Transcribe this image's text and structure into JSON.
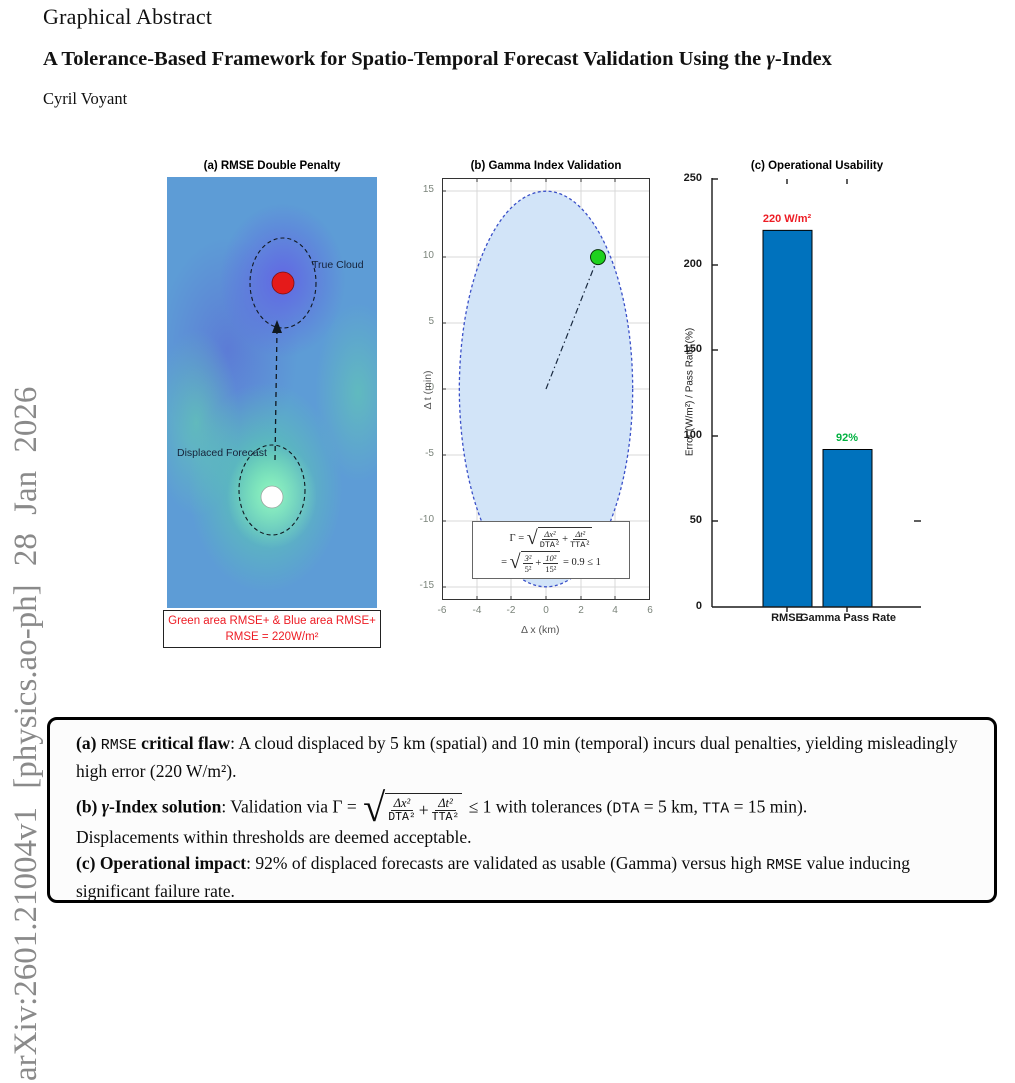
{
  "page": {
    "section_heading": "Graphical Abstract",
    "title_main": "A Tolerance-Based Framework for Spatio-Temporal Forecast Validation Using the ",
    "title_gamma": "γ",
    "title_suffix": "-Index",
    "author": "Cyril Voyant",
    "watermark": "arXiv:2601.21004v1  [physics.ao-ph]  28 Jan 2026"
  },
  "panel_a": {
    "title": "(a) RMSE Double Penalty",
    "label_true_cloud": "True Cloud",
    "label_displaced": "Displaced Forecast",
    "caption_line1": "Green area RMSE+ & Blue area RMSE+",
    "caption_line2": "RMSE = 220W/m²",
    "colors": {
      "true_dot": "#e51a1a",
      "displaced_dot": "#ffffff",
      "caption_text": "#ed1c24",
      "background": "#5d9cd6"
    }
  },
  "panel_b": {
    "title": "(b) Gamma Index Validation",
    "xlabel": "Δ x (km)",
    "ylabel": "Δ t (min)",
    "yticks": [
      "15",
      "10",
      "5",
      "0",
      "-5",
      "-10",
      "-15"
    ],
    "xticks": [
      "-6",
      "-4",
      "-2",
      "0",
      "2",
      "4",
      "6"
    ],
    "formula": {
      "lhs1": "Γ =",
      "f1n": "Δx²",
      "f1d": "DTA²",
      "plus1": "+",
      "f2n": "Δt²",
      "f2d": "TTA²",
      "lhs2": "=",
      "f3n": "3²",
      "f3d": "5²",
      "plus2": "+",
      "f4n": "10²",
      "f4d": "15²",
      "rhs2": "= 0.9 ≤ 1"
    },
    "colors": {
      "ellipse_fill": "#d2e4f8",
      "ellipse_stroke": "#3a50c8",
      "point": "#1ed11e"
    }
  },
  "panel_c": {
    "title": "(c) Operational Usability",
    "ylabel": "Error (W/m²) / Pass Rate (%)",
    "yticks": [
      "250",
      "200",
      "150",
      "100",
      "50",
      "0"
    ],
    "value_labels": [
      "220 W/m²",
      "92%"
    ],
    "categories": [
      "RMSE",
      "Gamma Pass Rate"
    ],
    "colors": {
      "bar": "#0072BD",
      "rmse_label": "#ed1c24",
      "gamma_label": "#00b140"
    }
  },
  "summary": {
    "a_label": "(a) ",
    "a_code": "RMSE",
    "a_bold": " critical flaw",
    "a_text": ": A cloud displaced by 5 km (spatial) and 10 min (temporal) incurs dual penalties, yielding misleadingly high error (220 W/m²).",
    "b_label": "(b) ",
    "b_gamma": "γ",
    "b_bold": "-Index solution",
    "b_text1": ": Validation via Γ =",
    "b_f1n": "Δx²",
    "b_f1d": "DTA²",
    "b_plus": "+",
    "b_f2n": "Δt²",
    "b_f2d": "TTA²",
    "b_text2": "≤ 1 with tolerances (",
    "b_code1": "DTA",
    "b_text3": " = 5 km, ",
    "b_code2": "TTA",
    "b_text4": " = 15 min).",
    "b_text5": "Displacements within thresholds are deemed acceptable.",
    "c_label": "(c) ",
    "c_bold": "Operational impact",
    "c_text1": ": 92% of displaced forecasts are validated as usable (Gamma) versus high ",
    "c_code": "RMSE",
    "c_text2": " value inducing significant failure rate."
  },
  "chart_data": [
    {
      "panel": "a",
      "type": "heatmap",
      "title": "(a) RMSE Double Penalty",
      "annotations": [
        {
          "label": "True Cloud",
          "marker": "red dot in dashed ellipse"
        },
        {
          "label": "Displaced Forecast",
          "marker": "white dot in dashed ellipse",
          "displacement": "5 km spatial, 10 min temporal"
        }
      ],
      "caption": "Green area RMSE+ & Blue area RMSE+  RMSE = 220W/m²"
    },
    {
      "panel": "b",
      "type": "scatter",
      "title": "(b) Gamma Index Validation",
      "xlabel": "Δ x (km)",
      "ylabel": "Δ t (min)",
      "xlim": [
        -6,
        6
      ],
      "ylim": [
        -16,
        16
      ],
      "xticks": [
        -6,
        -4,
        -2,
        0,
        2,
        4,
        6
      ],
      "yticks": [
        -15,
        -10,
        -5,
        0,
        5,
        10,
        15
      ],
      "grid": true,
      "tolerance": {
        "dta_km": 5,
        "tta_min": 15
      },
      "point": {
        "x": 3,
        "y": 10
      },
      "line_from_origin": true,
      "formula": "Γ = √(Δx²/DTA² + Δt²/TTA²) = √(3²/5² + 10²/15²) = 0.9 ≤ 1"
    },
    {
      "panel": "c",
      "type": "bar",
      "title": "(c) Operational Usability",
      "categories": [
        "RMSE",
        "Gamma Pass Rate"
      ],
      "values": [
        220,
        92
      ],
      "value_labels": [
        "220 W/m²",
        "92%"
      ],
      "ylabel": "Error (W/m²) / Pass Rate (%)",
      "ylim": [
        0,
        250
      ],
      "yticks": [
        0,
        50,
        100,
        150,
        200,
        250
      ],
      "grid": false,
      "legend": "none"
    }
  ]
}
